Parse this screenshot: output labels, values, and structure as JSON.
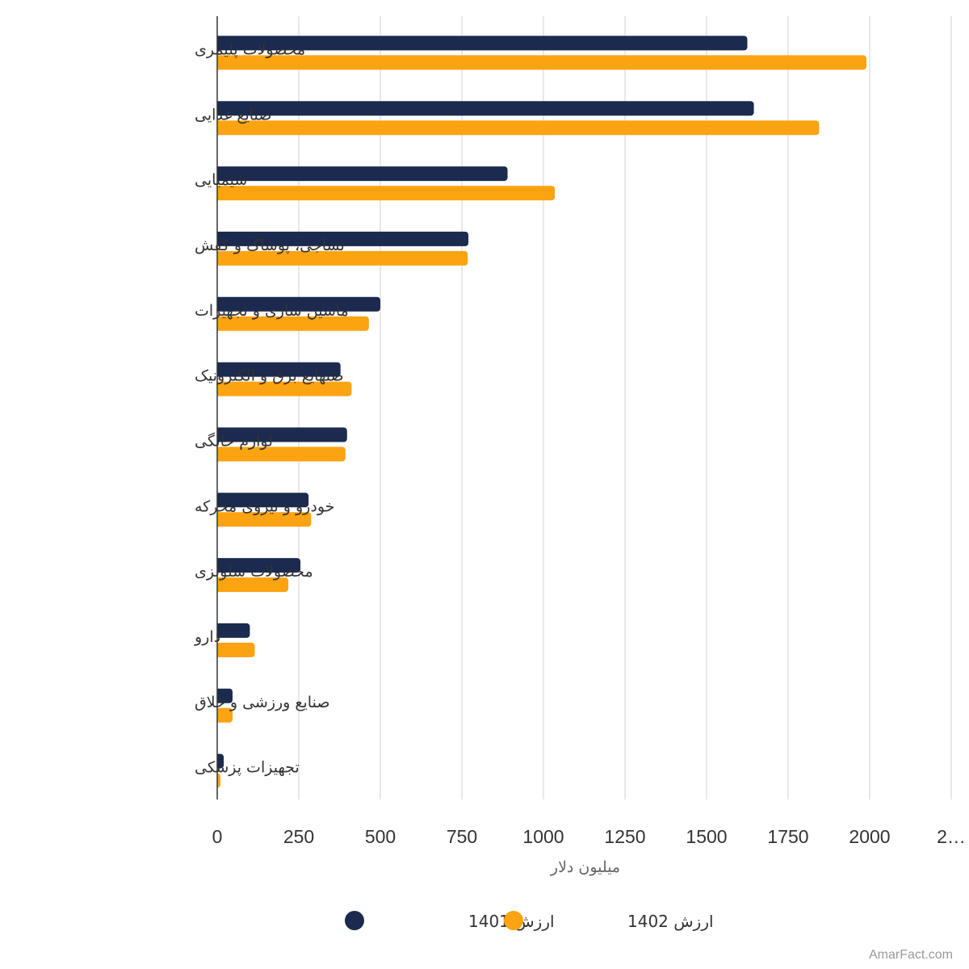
{
  "chart_data": {
    "type": "bar",
    "orientation": "horizontal",
    "categories": [
      "محصولات پلیمری",
      "صنایع غذایی",
      "شیمیایی",
      "نساجی، پوشاک و کفش",
      "ماشین سازی و تجهیزات",
      "صنهایع برق و الکترونیک",
      "لوازم خانگی",
      "خودرو و نیروی محرکه",
      "محصولات سلولزی",
      "دارو",
      "صنایع ورزشی و خلاق",
      "تجهیزات پزشکی"
    ],
    "series": [
      {
        "name": "ارزش 1401",
        "color": "#1b2a4e",
        "values": [
          1625,
          1645,
          890,
          770,
          500,
          378,
          398,
          280,
          255,
          100,
          47,
          20
        ]
      },
      {
        "name": "ارزش 1402",
        "color": "#fca311",
        "values": [
          1990,
          1845,
          1035,
          768,
          465,
          412,
          393,
          288,
          218,
          115,
          47,
          10
        ]
      }
    ],
    "xlabel": "میلیون دلار",
    "xticks": [
      "0",
      "250",
      "500",
      "750",
      "1000",
      "1250",
      "1500",
      "1750",
      "2000",
      "2…"
    ],
    "xlim": [
      0,
      2250
    ],
    "grid": true,
    "legend_position": "bottom"
  },
  "credit": "AmarFact.com"
}
